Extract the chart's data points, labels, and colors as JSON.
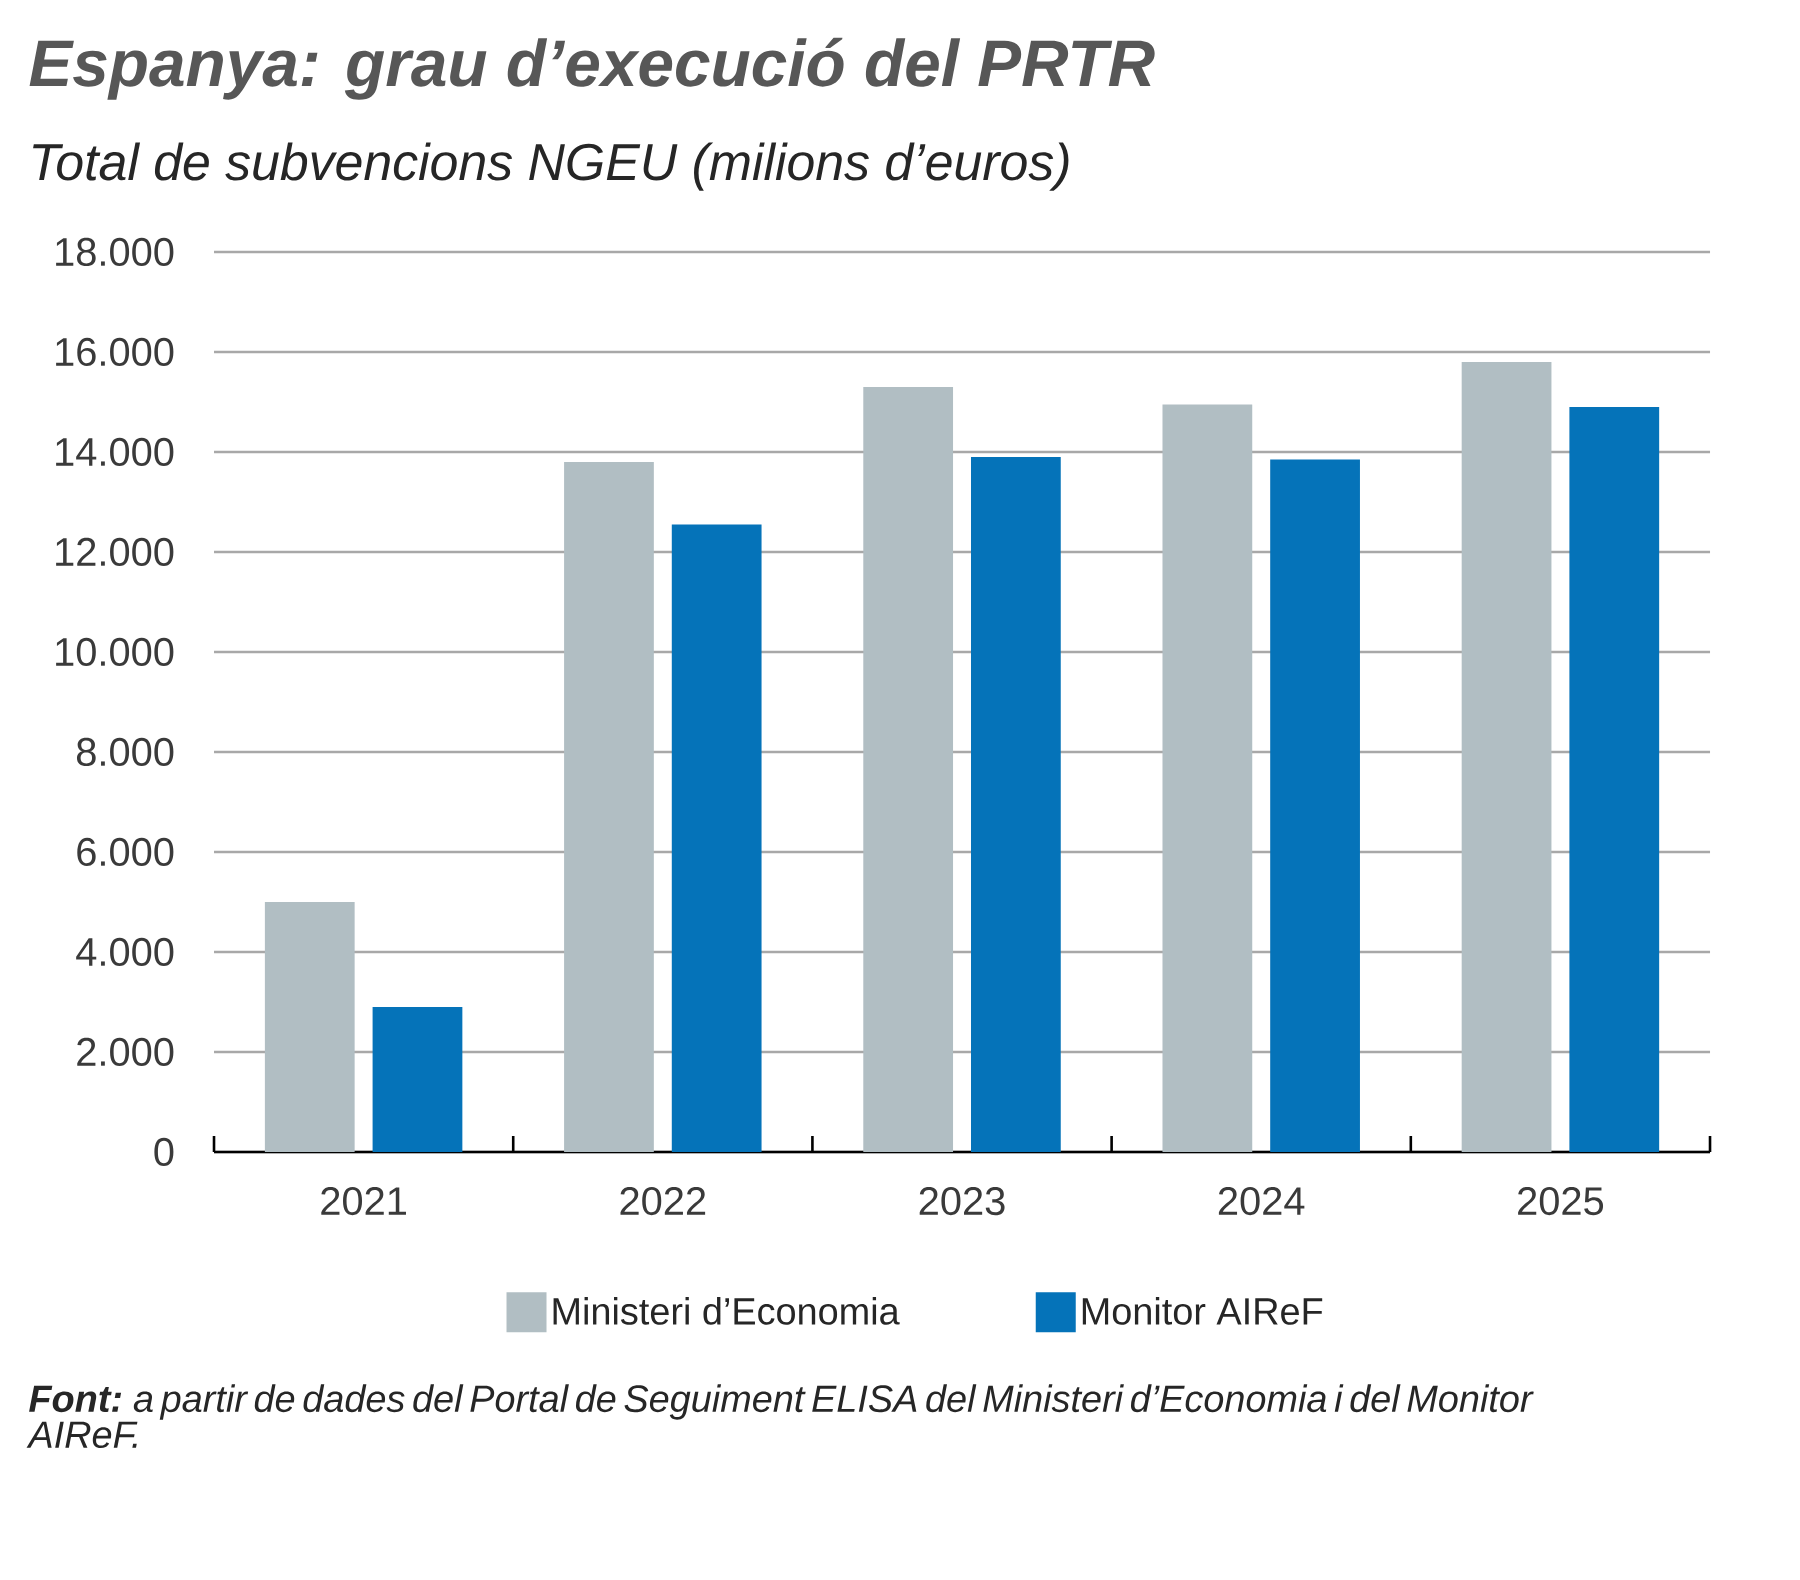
{
  "chart_data": {
    "type": "bar",
    "title": "Espanya: grau d’execució del PRTR",
    "subtitle": "Total de subvencions NGEU (milions d’euros)",
    "categories": [
      "2021",
      "2022",
      "2023",
      "2024",
      "2025"
    ],
    "series": [
      {
        "name": "Ministeri d’Economia",
        "color": "#b1bec3",
        "values": [
          5000,
          13800,
          15300,
          14950,
          15800
        ]
      },
      {
        "name": "Monitor AIReF",
        "color": "#0573b9",
        "values": [
          2900,
          12550,
          13900,
          13850,
          14900
        ]
      }
    ],
    "ylim": [
      0,
      18000
    ],
    "yticks": [
      0,
      {
        "value": 2000,
        "label": "2.000"
      },
      {
        "value": 4000,
        "label": "4.000"
      },
      {
        "value": 6000,
        "label": "6.000"
      },
      {
        "value": 8000,
        "label": "8.000"
      },
      {
        "value": 10000,
        "label": "10.000"
      },
      {
        "value": 12000,
        "label": "12.000"
      },
      {
        "value": 14000,
        "label": "14.000"
      },
      {
        "value": 16000,
        "label": "16.000"
      },
      {
        "value": 18000,
        "label": "18.000"
      }
    ],
    "grid": "y",
    "legend": "bottom",
    "annotations": [
      "**Font:** a partir de dades del Portal de Seguiment ELISA del Ministeri d’Economia i del Monitor AIReF."
    ]
  }
}
